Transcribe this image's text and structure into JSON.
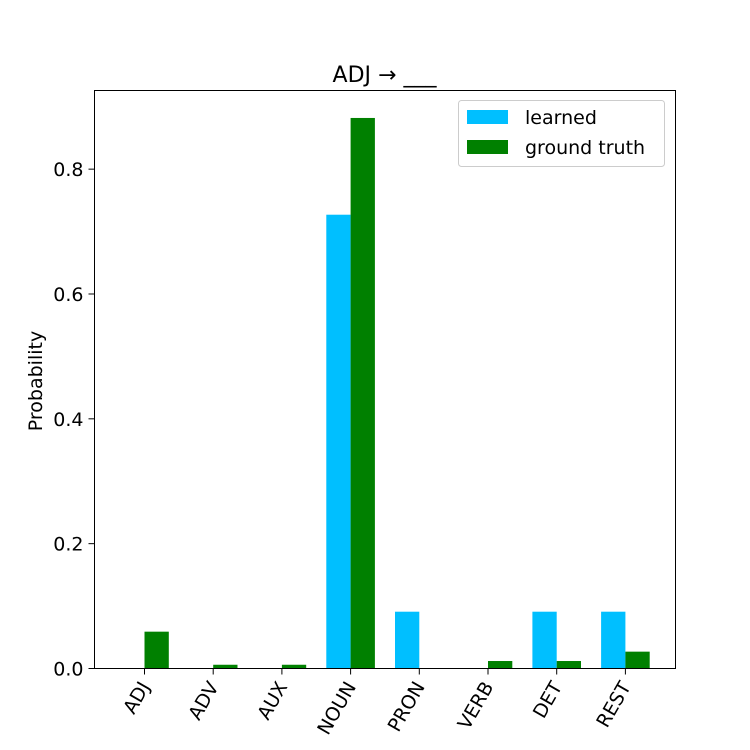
{
  "chart_data": {
    "type": "bar",
    "title": "ADJ → ___",
    "xlabel": "",
    "ylabel": "Probability",
    "categories": [
      "ADJ",
      "ADV",
      "AUX",
      "NOUN",
      "PRON",
      "VERB",
      "DET",
      "REST"
    ],
    "series": [
      {
        "name": "learned",
        "color": "#00bfff",
        "values": [
          0.0,
          0.0,
          0.0,
          0.727,
          0.091,
          0.0,
          0.091,
          0.091
        ]
      },
      {
        "name": "ground truth",
        "color": "#008000",
        "values": [
          0.059,
          0.006,
          0.006,
          0.882,
          0.0,
          0.012,
          0.012,
          0.027
        ]
      }
    ],
    "yticks": [
      "0.0",
      "0.2",
      "0.4",
      "0.6",
      "0.8"
    ],
    "ylim": [
      0,
      0.926
    ],
    "grid": false,
    "legend_position": "top-right"
  }
}
